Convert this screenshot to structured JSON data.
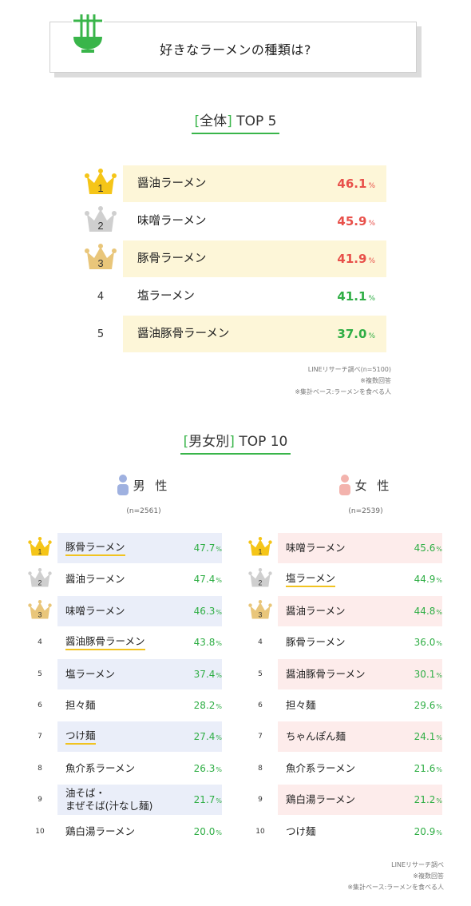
{
  "header": {
    "title": "好きなラーメンの種類は?",
    "icon": "ramen-bowl-icon",
    "accent": "#39b54a"
  },
  "overall": {
    "title_left": "[",
    "title_main": "全体",
    "title_right": "]",
    "title_suffix": "TOP 5",
    "notes": [
      "LINEリサーチ調べ(n=5100)",
      "※複数回答",
      "※集計ベース:ラーメンを食べる人"
    ]
  },
  "gender": {
    "title_left": "[",
    "title_main": "男女別",
    "title_right": "]",
    "title_suffix": "TOP 10",
    "male": {
      "label": "男 性",
      "n": "(n=2561)",
      "color": "#9fb1e0"
    },
    "female": {
      "label": "女 性",
      "n": "(n=2539)",
      "color": "#f3b3ad"
    },
    "notes": [
      "LINEリサーチ調べ",
      "※複数回答",
      "※集計ベース:ラーメンを食べる人"
    ]
  },
  "pct_unit": "%",
  "chart_data": [
    {
      "type": "table",
      "title": "[全体] TOP 5",
      "columns": [
        "rank",
        "item",
        "percent"
      ],
      "rows": [
        {
          "rank": "1",
          "item": "醤油ラーメン",
          "value": 46.1,
          "display": "46.1",
          "color": "red",
          "highlight": true,
          "medal": "gold"
        },
        {
          "rank": "2",
          "item": "味噌ラーメン",
          "value": 45.9,
          "display": "45.9",
          "color": "red",
          "highlight": false,
          "medal": "silver"
        },
        {
          "rank": "3",
          "item": "豚骨ラーメン",
          "value": 41.9,
          "display": "41.9",
          "color": "red",
          "highlight": true,
          "medal": "bronze"
        },
        {
          "rank": "4",
          "item": "塩ラーメン",
          "value": 41.1,
          "display": "41.1",
          "color": "green",
          "highlight": false,
          "medal": ""
        },
        {
          "rank": "5",
          "item": "醤油豚骨ラーメン",
          "value": 37.0,
          "display": "37.0",
          "color": "green",
          "highlight": true,
          "medal": ""
        }
      ]
    },
    {
      "type": "table",
      "title": "[男女別] TOP 10 男性",
      "series_name": "男 性",
      "rows": [
        {
          "rank": "1",
          "item": "豚骨ラーメン",
          "value": 47.7,
          "display": "47.7",
          "highlight": true,
          "underline": true,
          "medal": "gold"
        },
        {
          "rank": "2",
          "item": "醤油ラーメン",
          "value": 47.4,
          "display": "47.4",
          "highlight": false,
          "underline": false,
          "medal": "silver"
        },
        {
          "rank": "3",
          "item": "味噌ラーメン",
          "value": 46.3,
          "display": "46.3",
          "highlight": true,
          "underline": false,
          "medal": "bronze"
        },
        {
          "rank": "4",
          "item": "醤油豚骨ラーメン",
          "value": 43.8,
          "display": "43.8",
          "highlight": false,
          "underline": true,
          "medal": ""
        },
        {
          "rank": "5",
          "item": "塩ラーメン",
          "value": 37.4,
          "display": "37.4",
          "highlight": true,
          "underline": false,
          "medal": ""
        },
        {
          "rank": "6",
          "item": "担々麺",
          "value": 28.2,
          "display": "28.2",
          "highlight": false,
          "underline": false,
          "medal": ""
        },
        {
          "rank": "7",
          "item": "つけ麺",
          "value": 27.4,
          "display": "27.4",
          "highlight": true,
          "underline": true,
          "medal": ""
        },
        {
          "rank": "8",
          "item": "魚介系ラーメン",
          "value": 26.3,
          "display": "26.3",
          "highlight": false,
          "underline": false,
          "medal": ""
        },
        {
          "rank": "9",
          "item": "油そば・\nまぜそば(汁なし麺)",
          "value": 21.7,
          "display": "21.7",
          "highlight": true,
          "underline": false,
          "medal": ""
        },
        {
          "rank": "10",
          "item": "鶏白湯ラーメン",
          "value": 20.0,
          "display": "20.0",
          "highlight": false,
          "underline": false,
          "medal": ""
        }
      ]
    },
    {
      "type": "table",
      "title": "[男女別] TOP 10 女性",
      "series_name": "女 性",
      "rows": [
        {
          "rank": "1",
          "item": "味噌ラーメン",
          "value": 45.6,
          "display": "45.6",
          "highlight": true,
          "underline": false,
          "medal": "gold"
        },
        {
          "rank": "2",
          "item": "塩ラーメン",
          "value": 44.9,
          "display": "44.9",
          "highlight": false,
          "underline": true,
          "medal": "silver"
        },
        {
          "rank": "3",
          "item": "醤油ラーメン",
          "value": 44.8,
          "display": "44.8",
          "highlight": true,
          "underline": false,
          "medal": "bronze"
        },
        {
          "rank": "4",
          "item": "豚骨ラーメン",
          "value": 36.0,
          "display": "36.0",
          "highlight": false,
          "underline": false,
          "medal": ""
        },
        {
          "rank": "5",
          "item": "醤油豚骨ラーメン",
          "value": 30.1,
          "display": "30.1",
          "highlight": true,
          "underline": false,
          "medal": ""
        },
        {
          "rank": "6",
          "item": "担々麺",
          "value": 29.6,
          "display": "29.6",
          "highlight": false,
          "underline": false,
          "medal": ""
        },
        {
          "rank": "7",
          "item": "ちゃんぽん麺",
          "value": 24.1,
          "display": "24.1",
          "highlight": true,
          "underline": false,
          "medal": ""
        },
        {
          "rank": "8",
          "item": "魚介系ラーメン",
          "value": 21.6,
          "display": "21.6",
          "highlight": false,
          "underline": false,
          "medal": ""
        },
        {
          "rank": "9",
          "item": "鶏白湯ラーメン",
          "value": 21.2,
          "display": "21.2",
          "highlight": true,
          "underline": false,
          "medal": ""
        },
        {
          "rank": "10",
          "item": "つけ麺",
          "value": 20.9,
          "display": "20.9",
          "highlight": false,
          "underline": false,
          "medal": ""
        }
      ]
    }
  ]
}
